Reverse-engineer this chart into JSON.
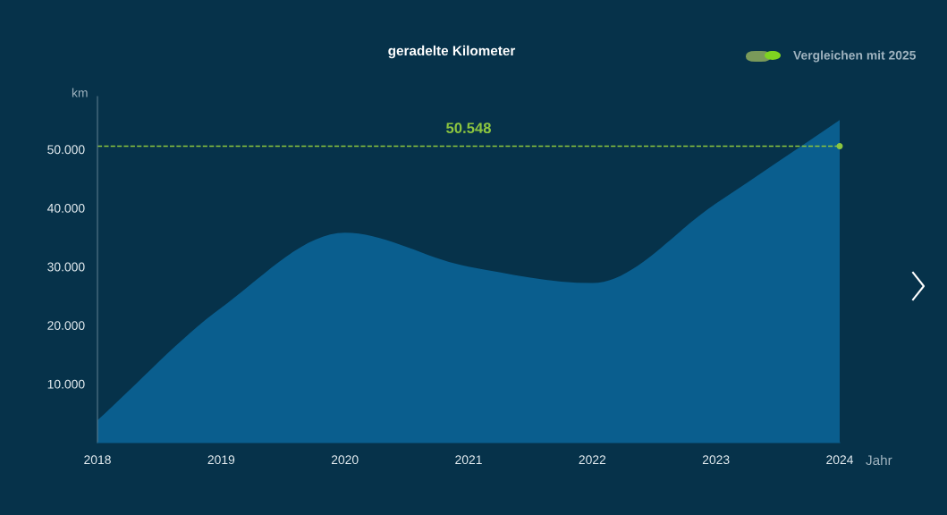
{
  "chart_data": {
    "type": "area",
    "title": "geradelte Kilometer",
    "xlabel": "Jahr",
    "ylabel": "km",
    "x": [
      2018,
      2019,
      2020,
      2021,
      2022,
      2023,
      2024
    ],
    "series": [
      {
        "color": "#0a5e8e",
        "values": [
          3800,
          23000,
          35800,
          30000,
          27200,
          40800,
          55000
        ]
      }
    ],
    "xlim": [
      2018,
      2024
    ],
    "xticks": [
      2018,
      2019,
      2020,
      2021,
      2022,
      2023,
      2024
    ],
    "ylim": [
      0,
      59000
    ],
    "yticks": [
      {
        "value": 10000,
        "label": "10.000"
      },
      {
        "value": 20000,
        "label": "20.000"
      },
      {
        "value": 30000,
        "label": "30.000"
      },
      {
        "value": 40000,
        "label": "40.000"
      },
      {
        "value": 50000,
        "label": "50.000"
      }
    ],
    "ref_lines": [
      {
        "axis": "y",
        "value": 50548,
        "label": "50.548",
        "color": "#8dc63f",
        "line_style": "dashed"
      }
    ],
    "annotations": [
      "Vergleichen mit 2025"
    ],
    "grid": false
  }
}
